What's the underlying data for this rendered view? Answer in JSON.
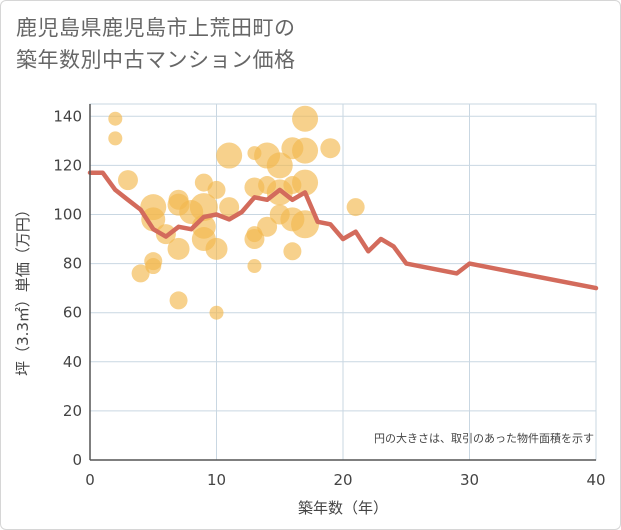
{
  "title_lines": [
    "鹿児島県鹿児島市上荒田町の",
    "築年数別中古マンション価格"
  ],
  "chart_data": {
    "type": "scatter",
    "title": "鹿児島県鹿児島市上荒田町の築年数別中古マンション価格",
    "xlabel": "築年数（年）",
    "ylabel": "坪（3.3㎡）単価（万円）",
    "xlim": [
      0,
      40
    ],
    "ylim": [
      0,
      145
    ],
    "xticks": [
      "0",
      "10",
      "20",
      "30",
      "40"
    ],
    "yticks": [
      "0",
      "20",
      "40",
      "60",
      "80",
      "100",
      "120",
      "140"
    ],
    "grid": true,
    "note": "円の大きさは、取引のあった物件面積を示す",
    "colors": {
      "bubble": "#f3b94f",
      "line": "#d36b5c",
      "grid": "#c9d7e2",
      "axis": "#555555"
    },
    "series": [
      {
        "type": "scatter",
        "points": [
          {
            "x": 2,
            "y": 139,
            "s": 7
          },
          {
            "x": 2,
            "y": 131,
            "s": 7
          },
          {
            "x": 3,
            "y": 114,
            "s": 10
          },
          {
            "x": 4,
            "y": 76,
            "s": 9
          },
          {
            "x": 5,
            "y": 103,
            "s": 13
          },
          {
            "x": 5,
            "y": 98,
            "s": 12
          },
          {
            "x": 5,
            "y": 81,
            "s": 9
          },
          {
            "x": 5,
            "y": 79,
            "s": 8
          },
          {
            "x": 6,
            "y": 92,
            "s": 10
          },
          {
            "x": 7,
            "y": 106,
            "s": 10
          },
          {
            "x": 7,
            "y": 104,
            "s": 11
          },
          {
            "x": 7,
            "y": 86,
            "s": 11
          },
          {
            "x": 7,
            "y": 65,
            "s": 9
          },
          {
            "x": 8,
            "y": 101,
            "s": 12
          },
          {
            "x": 9,
            "y": 113,
            "s": 9
          },
          {
            "x": 9,
            "y": 103,
            "s": 14
          },
          {
            "x": 9,
            "y": 95,
            "s": 12
          },
          {
            "x": 9,
            "y": 90,
            "s": 12
          },
          {
            "x": 10,
            "y": 110,
            "s": 9
          },
          {
            "x": 10,
            "y": 86,
            "s": 11
          },
          {
            "x": 10,
            "y": 60,
            "s": 7
          },
          {
            "x": 11,
            "y": 124,
            "s": 13
          },
          {
            "x": 11,
            "y": 103,
            "s": 10
          },
          {
            "x": 13,
            "y": 125,
            "s": 7
          },
          {
            "x": 13,
            "y": 111,
            "s": 10
          },
          {
            "x": 13,
            "y": 92,
            "s": 8
          },
          {
            "x": 13,
            "y": 90,
            "s": 10
          },
          {
            "x": 13,
            "y": 79,
            "s": 7
          },
          {
            "x": 14,
            "y": 124,
            "s": 13
          },
          {
            "x": 14,
            "y": 112,
            "s": 9
          },
          {
            "x": 14,
            "y": 95,
            "s": 10
          },
          {
            "x": 15,
            "y": 120,
            "s": 13
          },
          {
            "x": 15,
            "y": 109,
            "s": 13
          },
          {
            "x": 15,
            "y": 100,
            "s": 10
          },
          {
            "x": 16,
            "y": 127,
            "s": 11
          },
          {
            "x": 16,
            "y": 112,
            "s": 9
          },
          {
            "x": 16,
            "y": 98,
            "s": 12
          },
          {
            "x": 16,
            "y": 85,
            "s": 9
          },
          {
            "x": 17,
            "y": 139,
            "s": 13
          },
          {
            "x": 17,
            "y": 126,
            "s": 13
          },
          {
            "x": 17,
            "y": 113,
            "s": 13
          },
          {
            "x": 17,
            "y": 96,
            "s": 14
          },
          {
            "x": 19,
            "y": 127,
            "s": 10
          },
          {
            "x": 21,
            "y": 103,
            "s": 9
          }
        ]
      },
      {
        "type": "line",
        "points": [
          [
            0,
            117
          ],
          [
            1,
            117
          ],
          [
            2,
            110
          ],
          [
            3,
            106
          ],
          [
            4,
            102
          ],
          [
            5,
            94
          ],
          [
            6,
            91
          ],
          [
            7,
            95
          ],
          [
            8,
            94
          ],
          [
            9,
            99
          ],
          [
            10,
            100
          ],
          [
            11,
            98
          ],
          [
            12,
            101
          ],
          [
            13,
            107
          ],
          [
            14,
            106
          ],
          [
            15,
            110
          ],
          [
            16,
            106
          ],
          [
            17,
            109
          ],
          [
            18,
            97
          ],
          [
            19,
            96
          ],
          [
            20,
            90
          ],
          [
            21,
            93
          ],
          [
            22,
            85
          ],
          [
            23,
            90
          ],
          [
            24,
            87
          ],
          [
            25,
            80
          ],
          [
            29,
            76
          ],
          [
            30,
            80
          ],
          [
            40,
            70
          ]
        ]
      }
    ]
  }
}
